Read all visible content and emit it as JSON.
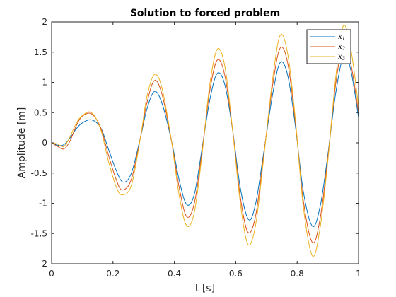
{
  "chart_data": {
    "type": "line",
    "title": "Solution to forced problem",
    "xlabel": "t [s]",
    "ylabel": "Amplitude [m]",
    "xlim": [
      0,
      1
    ],
    "ylim": [
      -2,
      2
    ],
    "xticks": [
      0,
      0.2,
      0.4,
      0.6,
      0.8,
      1
    ],
    "xtick_labels": [
      "0",
      "0.2",
      "0.4",
      "0.6",
      "0.8",
      "1"
    ],
    "yticks": [
      -2,
      -1.5,
      -1,
      -0.5,
      0,
      0.5,
      1,
      1.5,
      2
    ],
    "ytick_labels": [
      "-2",
      "-1.5",
      "-1",
      "-0.5",
      "0",
      "0.5",
      "1",
      "1.5",
      "2"
    ],
    "grid": false,
    "legend_position": "top-right",
    "series": [
      {
        "name": "x",
        "subscript": "1",
        "color": "#0072bd",
        "x": [
          0,
          0.02,
          0.04,
          0.06,
          0.08,
          0.1,
          0.13,
          0.16,
          0.185,
          0.21,
          0.233,
          0.26,
          0.29,
          0.31,
          0.335,
          0.36,
          0.39,
          0.415,
          0.44,
          0.465,
          0.49,
          0.515,
          0.54,
          0.565,
          0.59,
          0.615,
          0.642,
          0.665,
          0.69,
          0.72,
          0.745,
          0.77,
          0.795,
          0.82,
          0.85,
          0.875,
          0.9,
          0.925,
          0.952,
          0.975,
          1.0
        ],
        "y": [
          0,
          -0.04,
          -0.03,
          0.08,
          0.23,
          0.33,
          0.38,
          0.25,
          -0.1,
          -0.45,
          -0.65,
          -0.5,
          0.1,
          0.55,
          0.85,
          0.65,
          0.05,
          -0.6,
          -1.02,
          -0.85,
          -0.1,
          0.7,
          1.15,
          0.95,
          0.2,
          -0.75,
          -1.27,
          -1.0,
          -0.2,
          0.8,
          1.33,
          1.1,
          0.25,
          -0.8,
          -1.38,
          -1.05,
          -0.2,
          0.8,
          1.45,
          1.2,
          0.42
        ]
      },
      {
        "name": "x",
        "subscript": "2",
        "color": "#d95319",
        "x": [
          0,
          0.02,
          0.04,
          0.06,
          0.08,
          0.1,
          0.13,
          0.16,
          0.185,
          0.21,
          0.23,
          0.26,
          0.29,
          0.31,
          0.335,
          0.36,
          0.39,
          0.415,
          0.44,
          0.465,
          0.49,
          0.515,
          0.54,
          0.565,
          0.59,
          0.615,
          0.64,
          0.665,
          0.69,
          0.72,
          0.745,
          0.77,
          0.795,
          0.82,
          0.85,
          0.875,
          0.9,
          0.925,
          0.95,
          0.975,
          1.0
        ],
        "y": [
          0,
          -0.06,
          -0.1,
          0.03,
          0.28,
          0.44,
          0.48,
          0.25,
          -0.2,
          -0.6,
          -0.78,
          -0.6,
          0.1,
          0.65,
          1.03,
          0.8,
          0.05,
          -0.72,
          -1.22,
          -1.0,
          -0.15,
          0.85,
          1.37,
          1.1,
          0.2,
          -0.9,
          -1.48,
          -1.2,
          -0.25,
          0.95,
          1.57,
          1.3,
          0.3,
          -0.95,
          -1.65,
          -1.25,
          -0.25,
          0.95,
          1.6,
          1.3,
          0.5
        ]
      },
      {
        "name": "x",
        "subscript": "3",
        "color": "#edb120",
        "x": [
          0,
          0.02,
          0.04,
          0.06,
          0.08,
          0.1,
          0.13,
          0.16,
          0.185,
          0.21,
          0.23,
          0.26,
          0.29,
          0.31,
          0.335,
          0.36,
          0.39,
          0.415,
          0.44,
          0.465,
          0.49,
          0.515,
          0.54,
          0.565,
          0.59,
          0.615,
          0.64,
          0.665,
          0.69,
          0.72,
          0.745,
          0.77,
          0.795,
          0.82,
          0.85,
          0.875,
          0.9,
          0.925,
          0.95,
          0.975,
          1.0
        ],
        "y": [
          0,
          -0.02,
          -0.06,
          0.1,
          0.32,
          0.45,
          0.5,
          0.22,
          -0.3,
          -0.72,
          -0.86,
          -0.7,
          0.1,
          0.75,
          1.13,
          0.9,
          0.05,
          -0.85,
          -1.37,
          -1.15,
          -0.2,
          0.95,
          1.55,
          1.25,
          0.2,
          -1.0,
          -1.68,
          -1.35,
          -0.3,
          1.05,
          1.78,
          1.45,
          0.35,
          -1.05,
          -1.87,
          -1.4,
          -0.3,
          1.05,
          1.93,
          1.55,
          0.6
        ]
      }
    ]
  }
}
